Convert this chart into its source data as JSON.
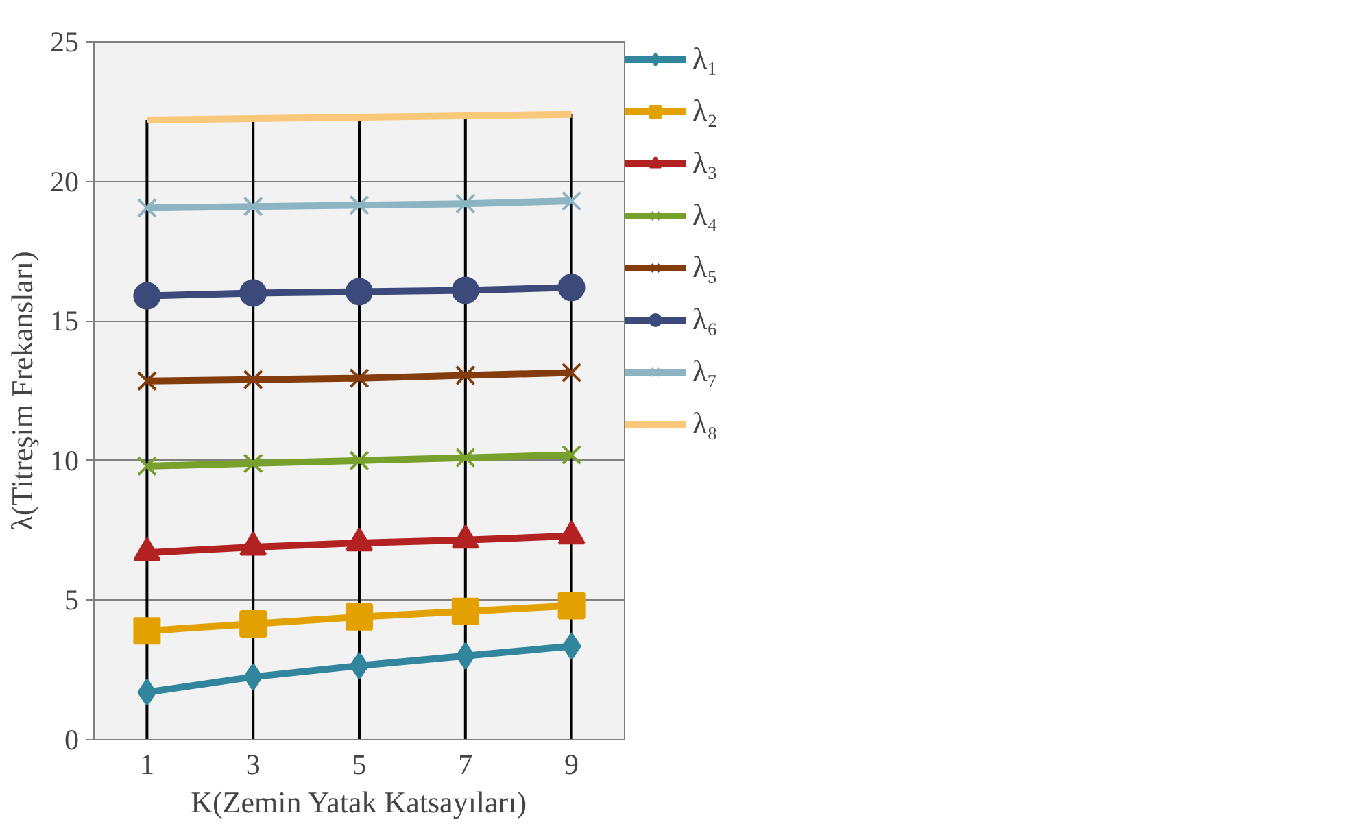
{
  "chart_data": {
    "type": "line",
    "xlabel": "K(Zemin Yatak Katsayıları)",
    "ylabel": "λ(Titreşim Frekansları)",
    "categories": [
      "1",
      "3",
      "5",
      "7",
      "9"
    ],
    "ylim": [
      0,
      25
    ],
    "yticks": [
      0,
      5,
      10,
      15,
      20,
      25
    ],
    "grid": true,
    "legend": "right",
    "series": [
      {
        "name": "λ₁",
        "color": "#31859c",
        "marker": "diamond",
        "values": [
          1.7,
          2.25,
          2.65,
          3.0,
          3.35
        ]
      },
      {
        "name": "λ₂",
        "color": "#e3a100",
        "marker": "square",
        "values": [
          3.9,
          4.15,
          4.4,
          4.6,
          4.8
        ]
      },
      {
        "name": "λ₃",
        "color": "#b22222",
        "marker": "triangle",
        "values": [
          6.7,
          6.9,
          7.05,
          7.15,
          7.3
        ]
      },
      {
        "name": "λ₄",
        "color": "#77a02c",
        "marker": "cross",
        "values": [
          9.8,
          9.9,
          10.0,
          10.1,
          10.2
        ]
      },
      {
        "name": "λ₅",
        "color": "#843c0c",
        "marker": "cross",
        "values": [
          12.85,
          12.9,
          12.95,
          13.05,
          13.15
        ]
      },
      {
        "name": "λ₆",
        "color": "#3b4a7a",
        "marker": "circle",
        "values": [
          15.9,
          16.0,
          16.05,
          16.1,
          16.2
        ]
      },
      {
        "name": "λ₇",
        "color": "#8cb4c2",
        "marker": "cross",
        "values": [
          19.05,
          19.1,
          19.15,
          19.2,
          19.3
        ]
      },
      {
        "name": "λ₈",
        "color": "#fac87a",
        "marker": "none",
        "values": [
          22.2,
          22.25,
          22.3,
          22.35,
          22.4
        ]
      }
    ]
  }
}
